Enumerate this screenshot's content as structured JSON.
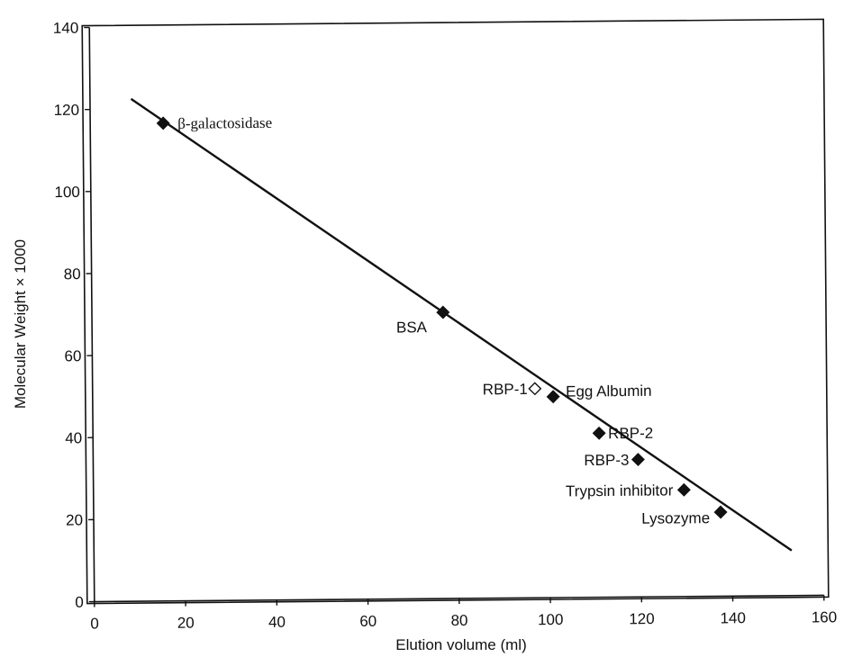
{
  "chart_data": {
    "type": "scatter",
    "xlabel": "Elution volume (ml)",
    "ylabel": "Molecular Weight × 1000",
    "xlim": [
      0,
      160
    ],
    "ylim": [
      0,
      140
    ],
    "xticks": [
      0,
      20,
      40,
      60,
      80,
      100,
      120,
      140,
      160
    ],
    "yticks": [
      0,
      20,
      40,
      60,
      80,
      100,
      120,
      140
    ],
    "grid": false,
    "points": [
      {
        "x": 16,
        "y": 116.5,
        "label": "β-galactosidase",
        "filled": true
      },
      {
        "x": 77,
        "y": 69.8,
        "label": "BSA",
        "filled": true
      },
      {
        "x": 97,
        "y": 51,
        "label": "RBP-1",
        "filled": false
      },
      {
        "x": 101,
        "y": 49,
        "label": "Egg Albumin",
        "filled": true
      },
      {
        "x": 111,
        "y": 40,
        "label": "RBP-2",
        "filled": true
      },
      {
        "x": 119.5,
        "y": 33.5,
        "label": "RBP-3",
        "filled": true
      },
      {
        "x": 129.5,
        "y": 26,
        "label": "Trypsin inhibitor",
        "filled": true
      },
      {
        "x": 137.5,
        "y": 20.5,
        "label": "Lysozyme",
        "filled": true
      }
    ],
    "fit_line": {
      "x": [
        9,
        153
      ],
      "y": [
        122.5,
        11
      ]
    }
  }
}
